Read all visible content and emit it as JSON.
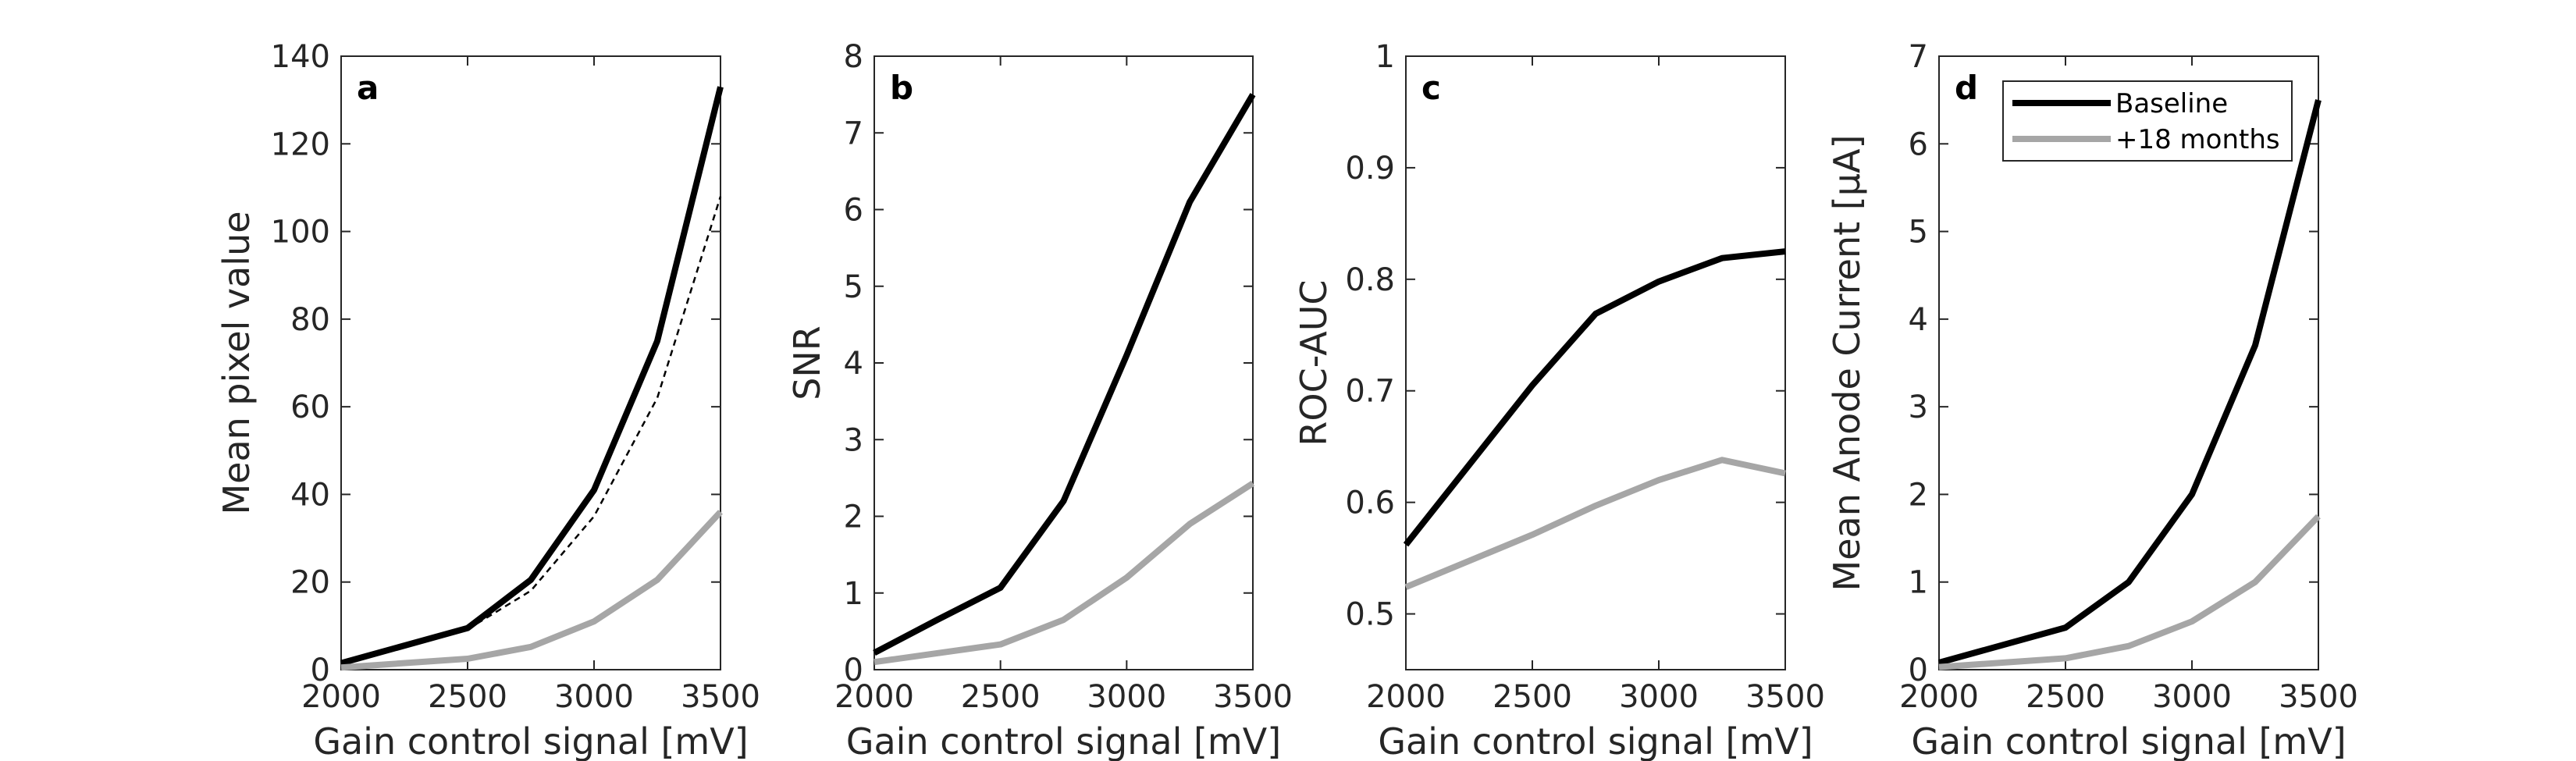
{
  "colors": {
    "baseline": "#000000",
    "months18": "#a6a6a6",
    "axis": "#262626"
  },
  "legend": {
    "entries": [
      "Baseline",
      "+18 months"
    ],
    "placement": "top-right"
  },
  "chart_data": [
    {
      "type": "line",
      "panel_label": "a",
      "xlabel": "Gain control signal [mV]",
      "ylabel": "Mean pixel value",
      "xlim": [
        2000,
        3500
      ],
      "ylim": [
        0,
        140
      ],
      "xticks": [
        2000,
        2500,
        3000,
        3500
      ],
      "yticks": [
        0,
        20,
        40,
        60,
        80,
        100,
        120,
        140
      ],
      "series": [
        {
          "name": "Baseline",
          "style": "solid-black",
          "x": [
            2000,
            2500,
            2750,
            3000,
            3250,
            3500
          ],
          "y": [
            1.5,
            9.5,
            20.5,
            41,
            75,
            133
          ]
        },
        {
          "style": "dashed-black",
          "x": [
            2000,
            2500,
            2750,
            3000,
            3250,
            3500
          ],
          "y": [
            1.5,
            9.2,
            18,
            35,
            62,
            108
          ]
        },
        {
          "name": "+18 months",
          "style": "solid-gray",
          "x": [
            2000,
            2500,
            2750,
            3000,
            3250,
            3500
          ],
          "y": [
            0.5,
            2.5,
            5.2,
            11,
            20.5,
            36
          ]
        }
      ]
    },
    {
      "type": "line",
      "panel_label": "b",
      "xlabel": "Gain control signal [mV]",
      "ylabel": "SNR",
      "xlim": [
        2000,
        3500
      ],
      "ylim": [
        0,
        8
      ],
      "xticks": [
        2000,
        2500,
        3000,
        3500
      ],
      "yticks": [
        0,
        1,
        2,
        3,
        4,
        5,
        6,
        7,
        8
      ],
      "series": [
        {
          "name": "Baseline",
          "style": "solid-black",
          "x": [
            2000,
            2250,
            2500,
            2750,
            3000,
            3250,
            3500
          ],
          "y": [
            0.22,
            0.65,
            1.07,
            2.2,
            4.1,
            6.1,
            7.5
          ]
        },
        {
          "name": "+18 months",
          "style": "solid-gray",
          "x": [
            2000,
            2500,
            2750,
            3000,
            3250,
            3500
          ],
          "y": [
            0.1,
            0.33,
            0.65,
            1.2,
            1.9,
            2.43
          ]
        }
      ]
    },
    {
      "type": "line",
      "panel_label": "c",
      "xlabel": "Gain control signal [mV]",
      "ylabel": "ROC-AUC",
      "xlim": [
        2000,
        3500
      ],
      "ylim": [
        0.45,
        1
      ],
      "xticks": [
        2000,
        2500,
        3000,
        3500
      ],
      "yticks": [
        0.5,
        0.6,
        0.7,
        0.8,
        0.9,
        1
      ],
      "series": [
        {
          "name": "Baseline",
          "style": "solid-black",
          "x": [
            2000,
            2500,
            2750,
            3000,
            3250,
            3500
          ],
          "y": [
            0.562,
            0.705,
            0.769,
            0.798,
            0.819,
            0.825
          ]
        },
        {
          "name": "+18 months",
          "style": "solid-gray",
          "x": [
            2000,
            2500,
            2750,
            3000,
            3250,
            3500
          ],
          "y": [
            0.524,
            0.571,
            0.597,
            0.62,
            0.638,
            0.626
          ]
        }
      ]
    },
    {
      "type": "line",
      "panel_label": "d",
      "xlabel": "Gain control signal [mV]",
      "ylabel": "Mean Anode Current [μA]",
      "xlim": [
        2000,
        3500
      ],
      "ylim": [
        0,
        7
      ],
      "xticks": [
        2000,
        2500,
        3000,
        3500
      ],
      "yticks": [
        0,
        1,
        2,
        3,
        4,
        5,
        6,
        7
      ],
      "legend": true,
      "series": [
        {
          "name": "Baseline",
          "style": "solid-black",
          "x": [
            2000,
            2500,
            2750,
            3000,
            3250,
            3500
          ],
          "y": [
            0.08,
            0.48,
            1.0,
            2.0,
            3.7,
            6.5
          ]
        },
        {
          "name": "+18 months",
          "style": "solid-gray",
          "x": [
            2000,
            2500,
            2750,
            3000,
            3250,
            3500
          ],
          "y": [
            0.03,
            0.13,
            0.27,
            0.55,
            1.0,
            1.75
          ]
        }
      ]
    }
  ]
}
